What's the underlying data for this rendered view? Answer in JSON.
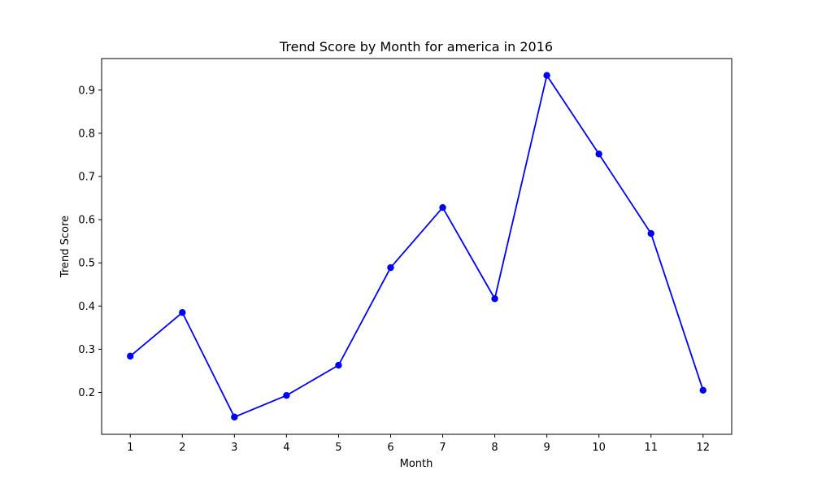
{
  "chart_data": {
    "type": "line",
    "title": "Trend Score by Month for america in 2016",
    "xlabel": "Month",
    "ylabel": "Trend Score",
    "x": [
      1,
      2,
      3,
      4,
      5,
      6,
      7,
      8,
      9,
      10,
      11,
      12
    ],
    "xticks": [
      "1",
      "2",
      "3",
      "4",
      "5",
      "6",
      "7",
      "8",
      "9",
      "10",
      "11",
      "12"
    ],
    "yticks": [
      0.2,
      0.3,
      0.4,
      0.5,
      0.6,
      0.7,
      0.8,
      0.9
    ],
    "ytick_labels": [
      "0.2",
      "0.3",
      "0.4",
      "0.5",
      "0.6",
      "0.7",
      "0.8",
      "0.9"
    ],
    "xlim": [
      0.45,
      12.55
    ],
    "ylim": [
      0.103,
      0.973
    ],
    "grid": false,
    "series": [
      {
        "values": [
          0.284,
          0.385,
          0.143,
          0.193,
          0.263,
          0.489,
          0.628,
          0.417,
          0.934,
          0.752,
          0.568,
          0.205
        ],
        "color": "#0000ff",
        "marker": "circle"
      }
    ]
  }
}
